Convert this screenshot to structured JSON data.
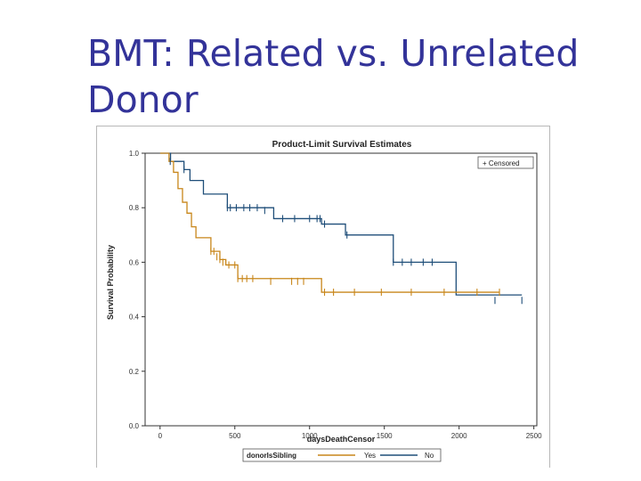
{
  "slide": {
    "title": "BMT: Related vs. Unrelated Donor"
  },
  "chart_data": {
    "type": "line",
    "step": true,
    "title": "Product-Limit Survival Estimates",
    "xlabel": "daysDeathCensor",
    "ylabel": "Survival Probability",
    "xlim": [
      -100,
      2520
    ],
    "ylim": [
      0,
      1.0
    ],
    "xticks": [
      0,
      500,
      1000,
      1500,
      2000,
      2500
    ],
    "yticks": [
      0.0,
      0.2,
      0.4,
      0.6,
      0.8,
      1.0
    ],
    "ytick_labels": [
      "0.0",
      "0.2",
      "0.4",
      "0.6",
      "0.8",
      "1.0"
    ],
    "censor_legend": "+ Censored",
    "group_legend": {
      "title": "donorIsSibling",
      "entries": [
        "Yes",
        "No"
      ]
    },
    "colors": {
      "Yes": "#c8861a",
      "No": "#1f4e79"
    },
    "series": [
      {
        "name": "No",
        "steps": [
          [
            0,
            1.0
          ],
          [
            70,
            0.97
          ],
          [
            160,
            0.94
          ],
          [
            200,
            0.9
          ],
          [
            290,
            0.85
          ],
          [
            450,
            0.8
          ],
          [
            760,
            0.76
          ],
          [
            1080,
            0.74
          ],
          [
            1240,
            0.7
          ],
          [
            1560,
            0.6
          ],
          [
            1980,
            0.48
          ]
        ],
        "end": 2420,
        "censored": [
          [
            68,
            0.97
          ],
          [
            160,
            0.94
          ],
          [
            450,
            0.8
          ],
          [
            470,
            0.8
          ],
          [
            510,
            0.8
          ],
          [
            560,
            0.8
          ],
          [
            600,
            0.8
          ],
          [
            650,
            0.8
          ],
          [
            700,
            0.79
          ],
          [
            820,
            0.76
          ],
          [
            900,
            0.76
          ],
          [
            1000,
            0.76
          ],
          [
            1050,
            0.76
          ],
          [
            1070,
            0.76
          ],
          [
            1100,
            0.74
          ],
          [
            1250,
            0.7
          ],
          [
            1560,
            0.6
          ],
          [
            1620,
            0.6
          ],
          [
            1680,
            0.6
          ],
          [
            1760,
            0.6
          ],
          [
            1820,
            0.6
          ],
          [
            2240,
            0.46
          ],
          [
            2420,
            0.46
          ]
        ]
      },
      {
        "name": "Yes",
        "steps": [
          [
            0,
            1.0
          ],
          [
            60,
            0.97
          ],
          [
            90,
            0.93
          ],
          [
            120,
            0.87
          ],
          [
            150,
            0.82
          ],
          [
            180,
            0.78
          ],
          [
            210,
            0.73
          ],
          [
            240,
            0.69
          ],
          [
            340,
            0.64
          ],
          [
            400,
            0.61
          ],
          [
            440,
            0.59
          ],
          [
            520,
            0.54
          ],
          [
            1080,
            0.49
          ]
        ],
        "end": 2270,
        "censored": [
          [
            340,
            0.64
          ],
          [
            360,
            0.64
          ],
          [
            380,
            0.62
          ],
          [
            400,
            0.61
          ],
          [
            420,
            0.6
          ],
          [
            460,
            0.59
          ],
          [
            500,
            0.59
          ],
          [
            520,
            0.54
          ],
          [
            550,
            0.54
          ],
          [
            580,
            0.54
          ],
          [
            620,
            0.54
          ],
          [
            740,
            0.53
          ],
          [
            880,
            0.53
          ],
          [
            920,
            0.53
          ],
          [
            960,
            0.53
          ],
          [
            1100,
            0.49
          ],
          [
            1160,
            0.49
          ],
          [
            1300,
            0.49
          ],
          [
            1480,
            0.49
          ],
          [
            1680,
            0.49
          ],
          [
            1900,
            0.49
          ],
          [
            2120,
            0.49
          ],
          [
            2270,
            0.49
          ]
        ]
      }
    ]
  }
}
